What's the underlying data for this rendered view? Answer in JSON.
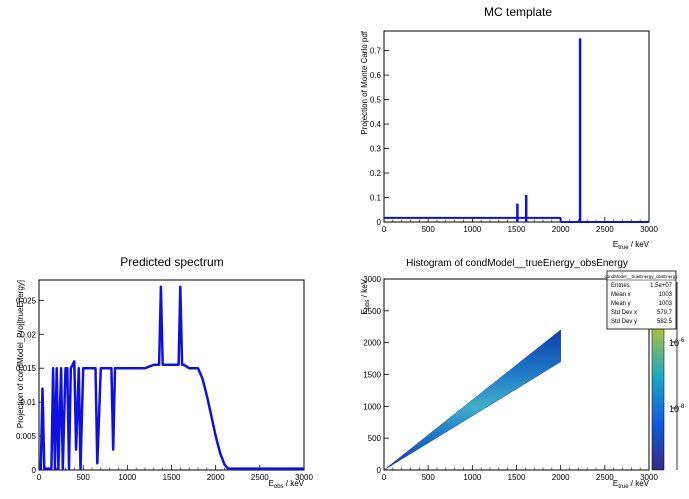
{
  "chart_data": [
    {
      "type": "bar",
      "title": "MC template",
      "xlabel_main": "E",
      "xlabel_sub": "true",
      "xlabel_unit": " / keV",
      "ylabel": "Projection of Monte Carlo pdf",
      "xlim": [
        0,
        3000
      ],
      "ylim": [
        0,
        0.78
      ],
      "xticks": [
        "0",
        "500",
        "1000",
        "1500",
        "2000",
        "2500",
        "3000"
      ],
      "yticks": [
        "0",
        "0.1",
        "0.2",
        "0.3",
        "0.4",
        "0.5",
        "0.6",
        "0.7"
      ],
      "color": "#1010e0",
      "baseline": {
        "x": [
          0,
          2000
        ],
        "value": 0.017
      },
      "spikes": [
        {
          "x": 1510,
          "value": 0.075
        },
        {
          "x": 1610,
          "value": 0.11
        },
        {
          "x": 2220,
          "value": 0.75
        }
      ]
    },
    {
      "type": "line",
      "title": "Predicted spectrum",
      "xlabel_main": "E",
      "xlabel_sub": "obs",
      "xlabel_unit": " / keV",
      "ylabel": "Projection of condModel_Proj[trueEnergy]",
      "xlim": [
        0,
        3000
      ],
      "ylim": [
        0,
        0.028
      ],
      "xticks": [
        "0",
        "500",
        "1000",
        "1500",
        "2000",
        "2500",
        "3000"
      ],
      "yticks": [
        "0",
        "0.005",
        "0.01",
        "0.015",
        "0.02",
        "0.025"
      ],
      "color": "#1010e0",
      "x": [
        0,
        20,
        40,
        60,
        80,
        100,
        140,
        160,
        180,
        200,
        220,
        250,
        270,
        300,
        320,
        340,
        360,
        400,
        420,
        450,
        470,
        500,
        520,
        600,
        640,
        660,
        700,
        820,
        840,
        860,
        900,
        1000,
        1100,
        1200,
        1300,
        1360,
        1380,
        1400,
        1500,
        1580,
        1600,
        1620,
        1640,
        1700,
        1800,
        1850,
        1900,
        1950,
        2000,
        2050,
        2100,
        2140,
        2200,
        2500,
        3000
      ],
      "y": [
        0.0002,
        0.0002,
        0.012,
        0.0002,
        0.0002,
        0.0002,
        0.0002,
        0.015,
        0.0002,
        0.015,
        0.0002,
        0.015,
        0.0002,
        0.015,
        0.015,
        0.0002,
        0.015,
        0.016,
        0.003,
        0.015,
        0.0002,
        0.015,
        0.015,
        0.015,
        0.015,
        0.001,
        0.015,
        0.015,
        0.003,
        0.015,
        0.015,
        0.015,
        0.015,
        0.015,
        0.0155,
        0.0155,
        0.027,
        0.0155,
        0.0155,
        0.0155,
        0.027,
        0.0155,
        0.0155,
        0.015,
        0.015,
        0.0135,
        0.011,
        0.008,
        0.005,
        0.0025,
        0.0008,
        0.0002,
        0.0002,
        0.0002,
        0.0002
      ]
    },
    {
      "type": "heatmap",
      "title": "Histogram of condModel__trueEnergy_obsEnergy",
      "xlabel_main": "E",
      "xlabel_sub": "true",
      "xlabel_unit": " / keV",
      "ylabel_main": "E",
      "ylabel_sub": "obs",
      "ylabel_unit": " / keV",
      "xlim": [
        0,
        3000
      ],
      "ylim": [
        0,
        3000
      ],
      "xticks": [
        "0",
        "500",
        "1000",
        "1500",
        "2000",
        "2500",
        "3000"
      ],
      "yticks": [
        "0",
        "500",
        "1000",
        "1500",
        "2000",
        "2500",
        "3000"
      ],
      "band": {
        "x_start": 0,
        "x_end": 2000,
        "y_start_low": 0,
        "y_end_low": 1700,
        "y_end_high": 2200
      },
      "colorbar_labels": [
        "10",
        "-6",
        "10",
        "-8"
      ],
      "stats_box": {
        "title": "condModel__trueEnergy_obsEnergy",
        "rows": [
          {
            "label": "Entries",
            "value": "1.5e+07"
          },
          {
            "label": "Mean x",
            "value": "1003"
          },
          {
            "label": "Mean y",
            "value": "1003"
          },
          {
            "label": "Std Dev x",
            "value": "579.7"
          },
          {
            "label": "Std Dev y",
            "value": "582.5"
          }
        ]
      }
    }
  ]
}
